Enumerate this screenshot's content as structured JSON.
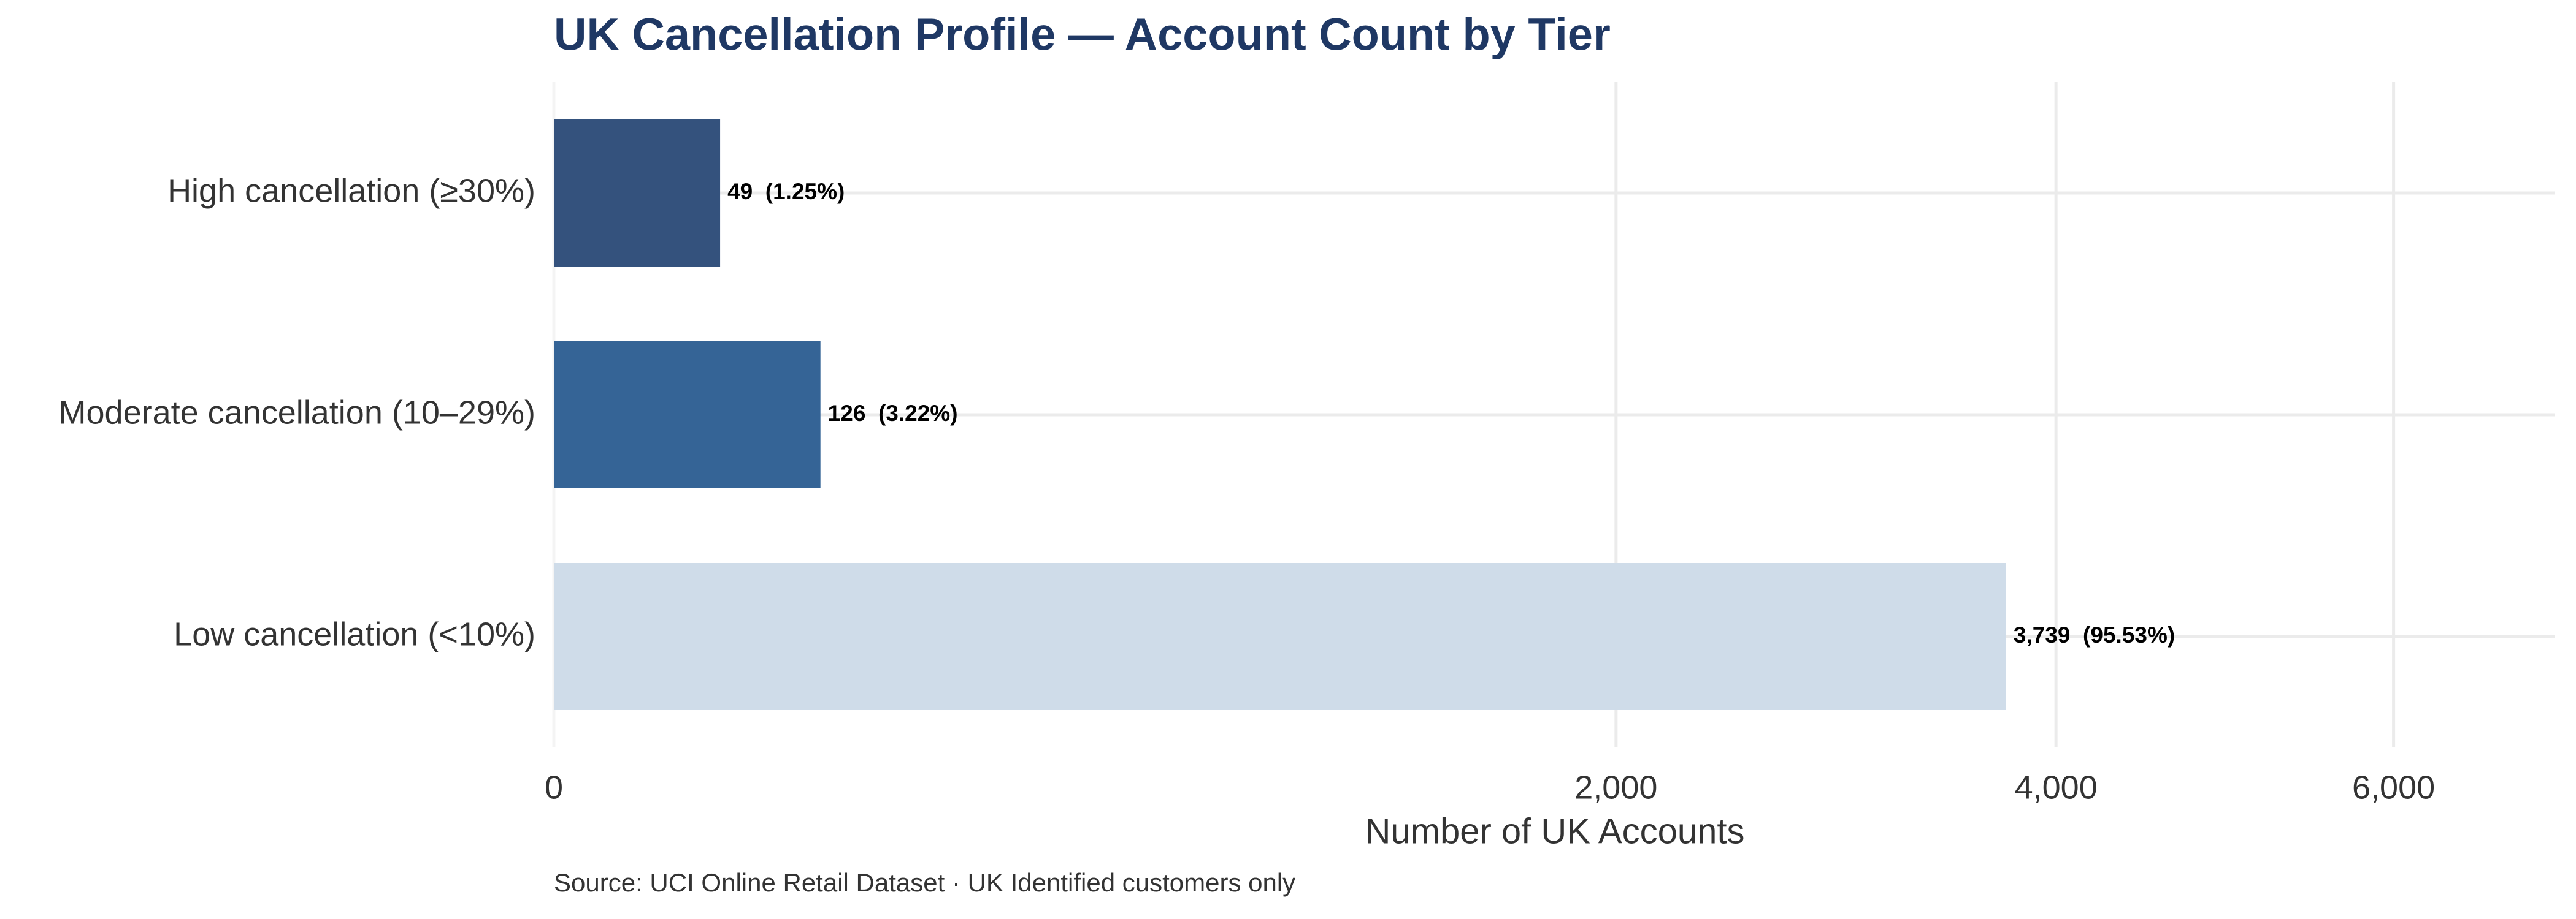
{
  "chart_data": {
    "type": "bar",
    "orientation": "horizontal",
    "title": "UK Cancellation Profile — Account Count by Tier",
    "x_label": "Number of UK Accounts",
    "source": "Source: UCI Online Retail Dataset · UK Identified customers only",
    "categories": [
      "High cancellation (≥30%)",
      "Moderate cancellation (10–29%)",
      "Low cancellation (<10%)"
    ],
    "values": [
      49,
      126,
      3739
    ],
    "value_labels": [
      "49  (1.25%)",
      "126  (3.22%)",
      "3,739  (95.53%)"
    ],
    "colors": [
      "#34527d",
      "#356496",
      "#cfdce9"
    ],
    "xscale": "sqrt",
    "xlim": [
      0,
      7100
    ],
    "xticks": [
      0,
      {
        "value": 2000,
        "label": "2,000"
      },
      {
        "value": 4000,
        "label": "4,000"
      },
      {
        "value": 6000,
        "label": "6,000"
      }
    ],
    "grid": true
  }
}
